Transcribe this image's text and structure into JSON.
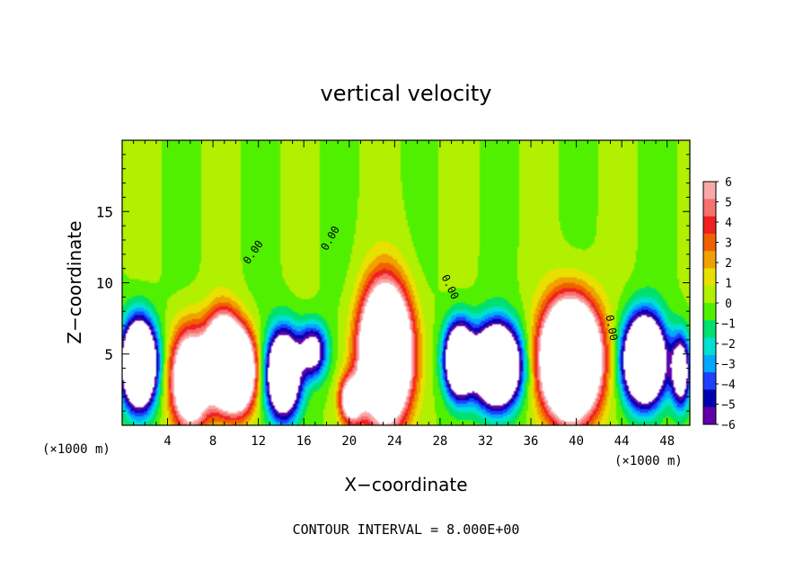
{
  "chart_data": {
    "type": "heatmap",
    "title": "vertical velocity",
    "xlabel": "X−coordinate",
    "ylabel": "Z−coordinate",
    "x_unit_left": "(×1000 m)",
    "x_unit_right": "(×1000 m)",
    "footer": "CONTOUR INTERVAL = 8.000E+00",
    "xlim": [
      0,
      50
    ],
    "ylim": [
      0,
      20
    ],
    "x_ticks": [
      4,
      8,
      12,
      16,
      20,
      24,
      28,
      32,
      36,
      40,
      44,
      48
    ],
    "y_ticks": [
      5,
      10,
      15
    ],
    "colorbar": {
      "min": -6,
      "max": 6,
      "labels": [
        "6",
        "5",
        "4",
        "3",
        "2",
        "1",
        "0",
        "−1",
        "−2",
        "−3",
        "−4",
        "−5",
        "−6"
      ],
      "colors": [
        "#f8a8a8",
        "#f87070",
        "#f02020",
        "#f06000",
        "#f0a000",
        "#e8e000",
        "#b0f000",
        "#50f000",
        "#00e070",
        "#00e0d0",
        "#00a8ff",
        "#2040ff",
        "#0000b0",
        "#6000a8"
      ]
    },
    "contour_labels": [
      {
        "text": "0.00",
        "x": 11.8,
        "y": 12.0,
        "angle": -55
      },
      {
        "text": "0.00",
        "x": 18.6,
        "y": 13.0,
        "angle": -60
      },
      {
        "text": "0.00",
        "x": 28.6,
        "y": 9.6,
        "angle": 65
      },
      {
        "text": "0.00",
        "x": 42.8,
        "y": 6.8,
        "angle": 80
      }
    ],
    "cells": [
      {
        "cx": 1.5,
        "cz": 4.3,
        "amp": -20,
        "w": 1.4,
        "h": 2.8
      },
      {
        "cx": 6.0,
        "cz": 3.2,
        "amp": 14,
        "w": 1.6,
        "h": 3.2
      },
      {
        "cx": 8.8,
        "cz": 4.6,
        "amp": 18,
        "w": 1.4,
        "h": 2.8
      },
      {
        "cx": 10.3,
        "cz": 3.8,
        "amp": 16,
        "w": 1.4,
        "h": 2.6
      },
      {
        "cx": 14.2,
        "cz": 3.6,
        "amp": -16,
        "w": 1.4,
        "h": 2.8
      },
      {
        "cx": 16.8,
        "cz": 5.2,
        "amp": -8,
        "w": 1.2,
        "h": 1.8
      },
      {
        "cx": 20.2,
        "cz": 1.8,
        "amp": 10,
        "w": 1.0,
        "h": 1.6
      },
      {
        "cx": 23.2,
        "cz": 5.0,
        "amp": 24,
        "w": 2.0,
        "h": 4.2
      },
      {
        "cx": 29.7,
        "cz": 4.6,
        "amp": -16,
        "w": 1.2,
        "h": 2.4
      },
      {
        "cx": 33.0,
        "cz": 4.2,
        "amp": -20,
        "w": 1.9,
        "h": 2.6
      },
      {
        "cx": 39.5,
        "cz": 4.6,
        "amp": 26,
        "w": 2.3,
        "h": 3.6
      },
      {
        "cx": 46.0,
        "cz": 4.6,
        "amp": -20,
        "w": 1.7,
        "h": 2.8
      },
      {
        "cx": 49.2,
        "cz": 3.8,
        "amp": -10,
        "w": 0.8,
        "h": 2.4
      }
    ]
  }
}
